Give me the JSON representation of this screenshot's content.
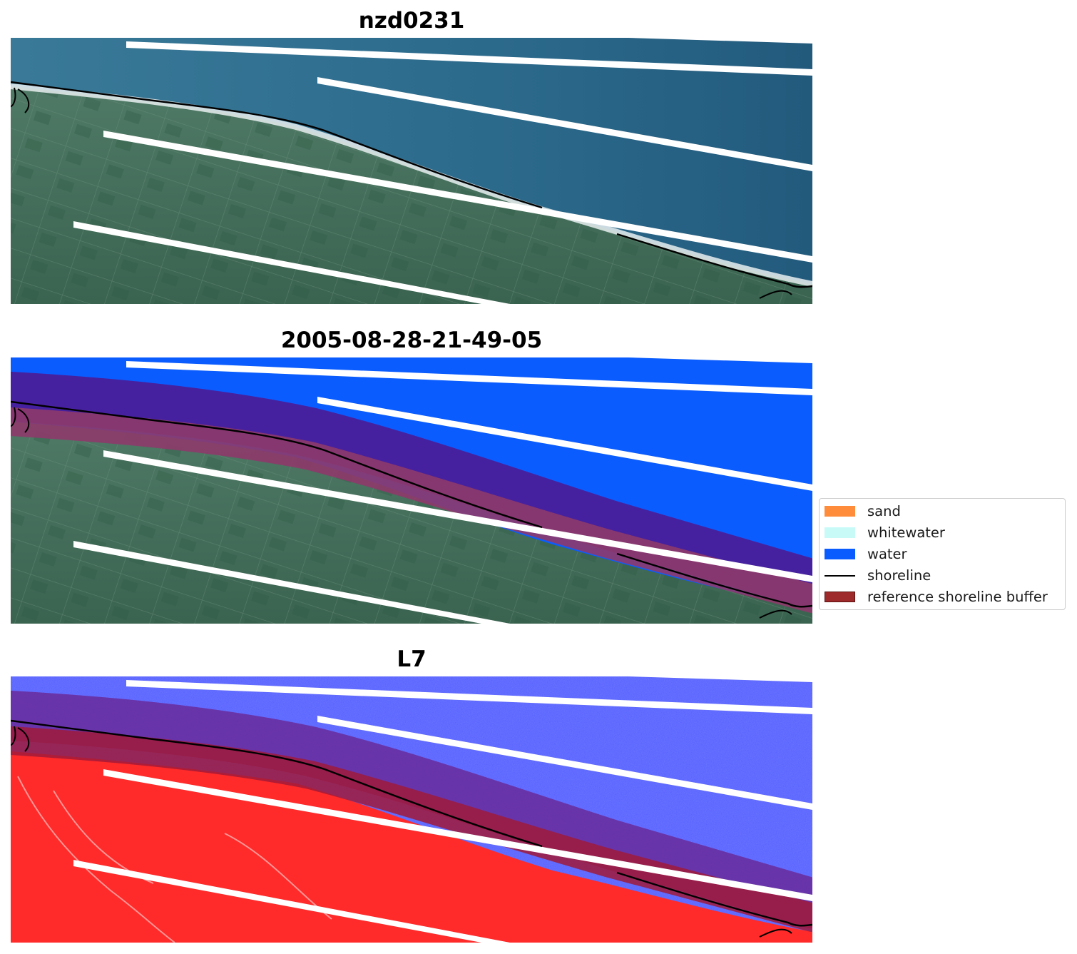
{
  "panels": [
    {
      "title": "nzd0231",
      "mode": "rgb"
    },
    {
      "title": "2005-08-28-21-49-05",
      "mode": "classified"
    },
    {
      "title": "L7",
      "mode": "index"
    }
  ],
  "legend": [
    {
      "label": "sand",
      "kind": "patch",
      "color": "#ff8c3a"
    },
    {
      "label": "whitewater",
      "kind": "patch",
      "color": "#c8fbf8"
    },
    {
      "label": "water",
      "kind": "patch",
      "color": "#0a5cff"
    },
    {
      "label": "shoreline",
      "kind": "line",
      "color": "#000000"
    },
    {
      "label": "reference shoreline buffer",
      "kind": "patch",
      "color": "#9e2a2b"
    }
  ],
  "colors": {
    "ocean": "#2b6c92",
    "land": "#3c6b55",
    "classified_water": "#0a5cff",
    "index_water": "#5560ff",
    "index_land": "#ff2a2a",
    "buffer": "#8e2a55",
    "shoreline": "#000000",
    "nodata_stripe": "#ffffff"
  }
}
